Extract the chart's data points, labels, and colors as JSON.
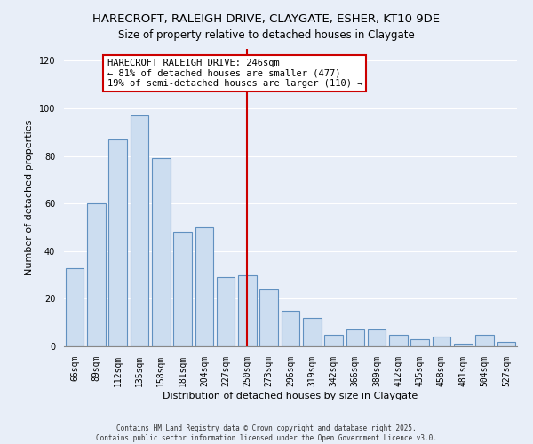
{
  "title": "HARECROFT, RALEIGH DRIVE, CLAYGATE, ESHER, KT10 9DE",
  "subtitle": "Size of property relative to detached houses in Claygate",
  "xlabel": "Distribution of detached houses by size in Claygate",
  "ylabel": "Number of detached properties",
  "categories": [
    "66sqm",
    "89sqm",
    "112sqm",
    "135sqm",
    "158sqm",
    "181sqm",
    "204sqm",
    "227sqm",
    "250sqm",
    "273sqm",
    "296sqm",
    "319sqm",
    "342sqm",
    "366sqm",
    "389sqm",
    "412sqm",
    "435sqm",
    "458sqm",
    "481sqm",
    "504sqm",
    "527sqm"
  ],
  "values": [
    33,
    60,
    87,
    97,
    79,
    48,
    50,
    29,
    30,
    24,
    15,
    12,
    5,
    7,
    7,
    5,
    3,
    4,
    1,
    5,
    2
  ],
  "bar_color": "#ccddf0",
  "bar_edge_color": "#6090c0",
  "vline_x_index": 8,
  "vline_color": "#cc0000",
  "annotation_title": "HARECROFT RALEIGH DRIVE: 246sqm",
  "annotation_line1": "← 81% of detached houses are smaller (477)",
  "annotation_line2": "19% of semi-detached houses are larger (110) →",
  "annotation_box_color": "#ffffff",
  "annotation_box_edge": "#cc0000",
  "ylim": [
    0,
    125
  ],
  "yticks": [
    0,
    20,
    40,
    60,
    80,
    100,
    120
  ],
  "footer1": "Contains HM Land Registry data © Crown copyright and database right 2025.",
  "footer2": "Contains public sector information licensed under the Open Government Licence v3.0.",
  "background_color": "#e8eef8",
  "grid_color": "#ffffff",
  "title_fontsize": 9.5,
  "subtitle_fontsize": 8.5,
  "axis_label_fontsize": 8,
  "tick_fontsize": 7,
  "annotation_fontsize": 7.5,
  "footer_fontsize": 5.5
}
